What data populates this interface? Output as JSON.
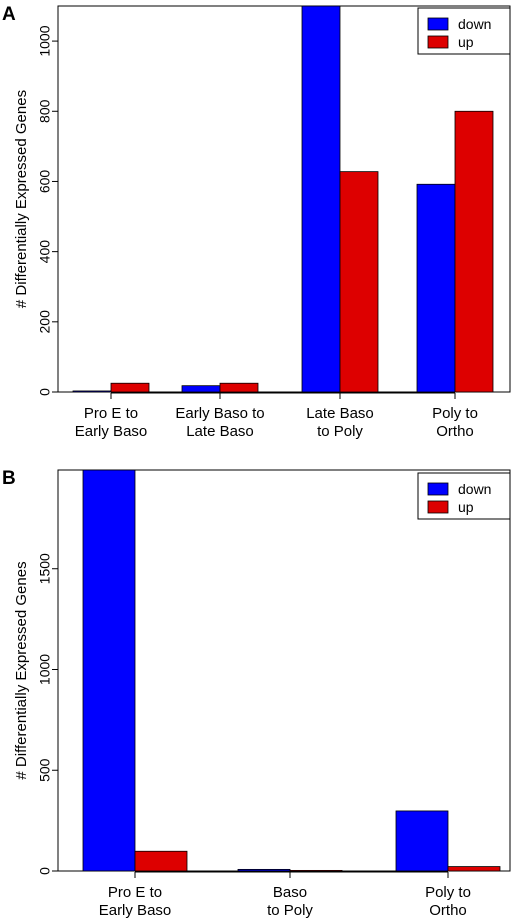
{
  "chart_data": [
    {
      "panel": "A",
      "type": "bar",
      "categories": [
        [
          "Pro E to",
          "Early Baso"
        ],
        [
          "Early Baso to",
          "Late Baso"
        ],
        [
          "Late Baso",
          "to Poly"
        ],
        [
          "Poly to",
          "Ortho"
        ]
      ],
      "series": [
        {
          "name": "down",
          "color": "#0000ff",
          "values": [
            3,
            18,
            1100,
            592
          ]
        },
        {
          "name": "up",
          "color": "#dd0000",
          "values": [
            25,
            25,
            628,
            800
          ]
        }
      ],
      "ylabel": "# Differentially Expressed Genes",
      "yticks": [
        0,
        200,
        400,
        600,
        800,
        1000
      ],
      "ylim": [
        0,
        1100
      ],
      "legend_position": "top-right",
      "grid": false
    },
    {
      "panel": "B",
      "type": "bar",
      "categories": [
        [
          "Pro E to",
          "Early Baso"
        ],
        [
          "Baso",
          "to Poly"
        ],
        [
          "Poly to",
          "Ortho"
        ]
      ],
      "series": [
        {
          "name": "down",
          "color": "#0000ff",
          "values": [
            1990,
            8,
            298
          ]
        },
        {
          "name": "up",
          "color": "#dd0000",
          "values": [
            98,
            3,
            22
          ]
        }
      ],
      "ylabel": "# Differentially Expressed Genes",
      "yticks": [
        0,
        500,
        1000,
        1500
      ],
      "ylim": [
        0,
        1990
      ],
      "legend_position": "top-right",
      "grid": false
    }
  ]
}
